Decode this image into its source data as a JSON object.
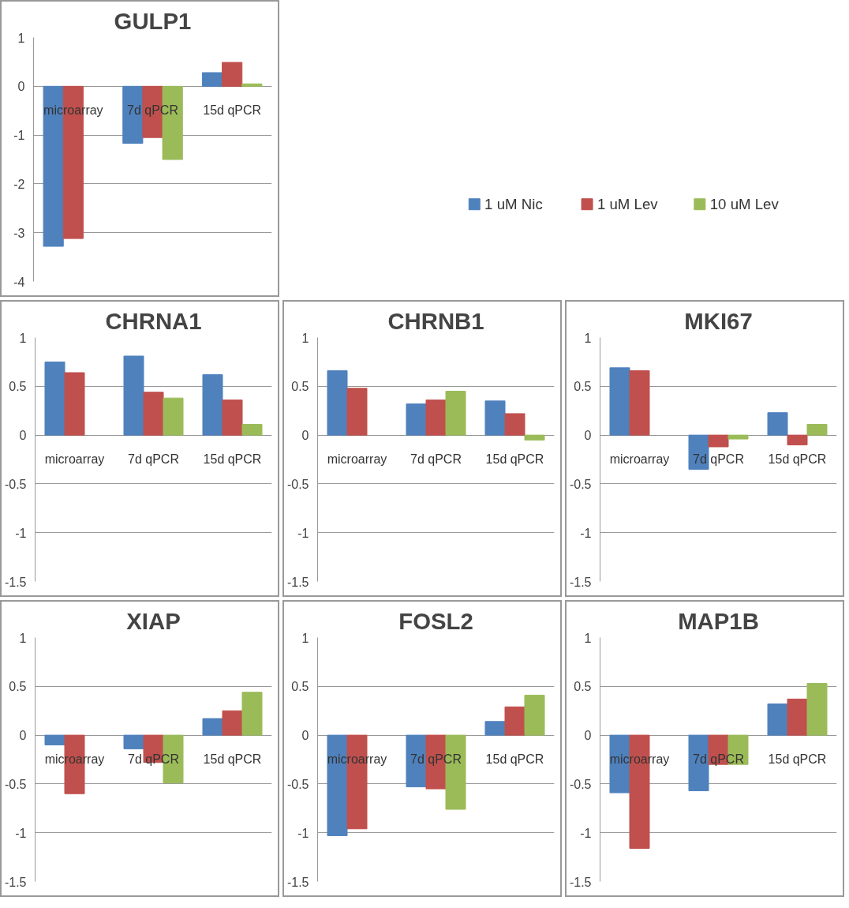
{
  "chart_data": [
    {
      "type": "bar",
      "title": "GULP1",
      "categories": [
        "microarray",
        "7d qPCR",
        "15d qPCR"
      ],
      "ylim": [
        -4,
        1
      ],
      "yticks": [
        -4,
        -3,
        -2,
        -1,
        0,
        1
      ],
      "grid": "y",
      "legend": "right",
      "series": [
        {
          "name": "1 uM Nic",
          "color": "#4f81bd",
          "values": [
            -3.28,
            -1.17,
            0.28
          ]
        },
        {
          "name": "1 uM Lev",
          "color": "#c0504d",
          "values": [
            -3.12,
            -1.05,
            0.49
          ]
        },
        {
          "name": "10 uM Lev",
          "color": "#9bbb59",
          "values": [
            null,
            -1.5,
            0.05
          ]
        }
      ]
    },
    {
      "type": "bar",
      "title": "CHRNA1",
      "categories": [
        "microarray",
        "7d qPCR",
        "15d qPCR"
      ],
      "ylim": [
        -1.5,
        1
      ],
      "yticks": [
        -1.5,
        -1,
        -0.5,
        0,
        0.5,
        1
      ],
      "grid": "y",
      "series": [
        {
          "color": "#4f81bd",
          "values": [
            0.75,
            0.81,
            0.62
          ]
        },
        {
          "color": "#c0504d",
          "values": [
            0.64,
            0.44,
            0.36
          ]
        },
        {
          "color": "#9bbb59",
          "values": [
            null,
            0.38,
            0.11
          ]
        }
      ]
    },
    {
      "type": "bar",
      "title": "CHRNB1",
      "categories": [
        "microarray",
        "7d qPCR",
        "15d qPCR"
      ],
      "ylim": [
        -1.5,
        1
      ],
      "yticks": [
        -1.5,
        -1,
        -0.5,
        0,
        0.5,
        1
      ],
      "grid": "y",
      "series": [
        {
          "color": "#4f81bd",
          "values": [
            0.66,
            0.32,
            0.35
          ]
        },
        {
          "color": "#c0504d",
          "values": [
            0.48,
            0.36,
            0.22
          ]
        },
        {
          "color": "#9bbb59",
          "values": [
            null,
            0.45,
            -0.05
          ]
        }
      ]
    },
    {
      "type": "bar",
      "title": "MKI67",
      "categories": [
        "microarray",
        "7d qPCR",
        "15d qPCR"
      ],
      "ylim": [
        -1.5,
        1
      ],
      "yticks": [
        -1.5,
        -1,
        -0.5,
        0,
        0.5,
        1
      ],
      "grid": "y",
      "series": [
        {
          "color": "#4f81bd",
          "values": [
            0.69,
            -0.35,
            0.23
          ]
        },
        {
          "color": "#c0504d",
          "values": [
            0.66,
            -0.12,
            -0.1
          ]
        },
        {
          "color": "#9bbb59",
          "values": [
            null,
            -0.04,
            0.11
          ]
        }
      ]
    },
    {
      "type": "bar",
      "title": "XIAP",
      "categories": [
        "microarray",
        "7d qPCR",
        "15d qPCR"
      ],
      "ylim": [
        -1.5,
        1
      ],
      "yticks": [
        -1.5,
        -1,
        -0.5,
        0,
        0.5,
        1
      ],
      "grid": "y",
      "series": [
        {
          "color": "#4f81bd",
          "values": [
            -0.1,
            -0.14,
            0.17
          ]
        },
        {
          "color": "#c0504d",
          "values": [
            -0.6,
            -0.28,
            0.25
          ]
        },
        {
          "color": "#9bbb59",
          "values": [
            null,
            -0.49,
            0.44
          ]
        }
      ]
    },
    {
      "type": "bar",
      "title": "FOSL2",
      "categories": [
        "microarray",
        "7d qPCR",
        "15d qPCR"
      ],
      "ylim": [
        -1.5,
        1
      ],
      "yticks": [
        -1.5,
        -1,
        -0.5,
        0,
        0.5,
        1
      ],
      "grid": "y",
      "series": [
        {
          "color": "#4f81bd",
          "values": [
            -1.03,
            -0.53,
            0.14
          ]
        },
        {
          "color": "#c0504d",
          "values": [
            -0.96,
            -0.55,
            0.29
          ]
        },
        {
          "color": "#9bbb59",
          "values": [
            null,
            -0.76,
            0.41
          ]
        }
      ]
    },
    {
      "type": "bar",
      "title": "MAP1B",
      "categories": [
        "microarray",
        "7d qPCR",
        "15d qPCR"
      ],
      "ylim": [
        -1.5,
        1
      ],
      "yticks": [
        -1.5,
        -1,
        -0.5,
        0,
        0.5,
        1
      ],
      "grid": "y",
      "series": [
        {
          "color": "#4f81bd",
          "values": [
            -0.59,
            -0.57,
            0.32
          ]
        },
        {
          "color": "#c0504d",
          "values": [
            -1.16,
            -0.3,
            0.37
          ]
        },
        {
          "color": "#9bbb59",
          "values": [
            null,
            -0.3,
            0.53
          ]
        }
      ]
    }
  ]
}
